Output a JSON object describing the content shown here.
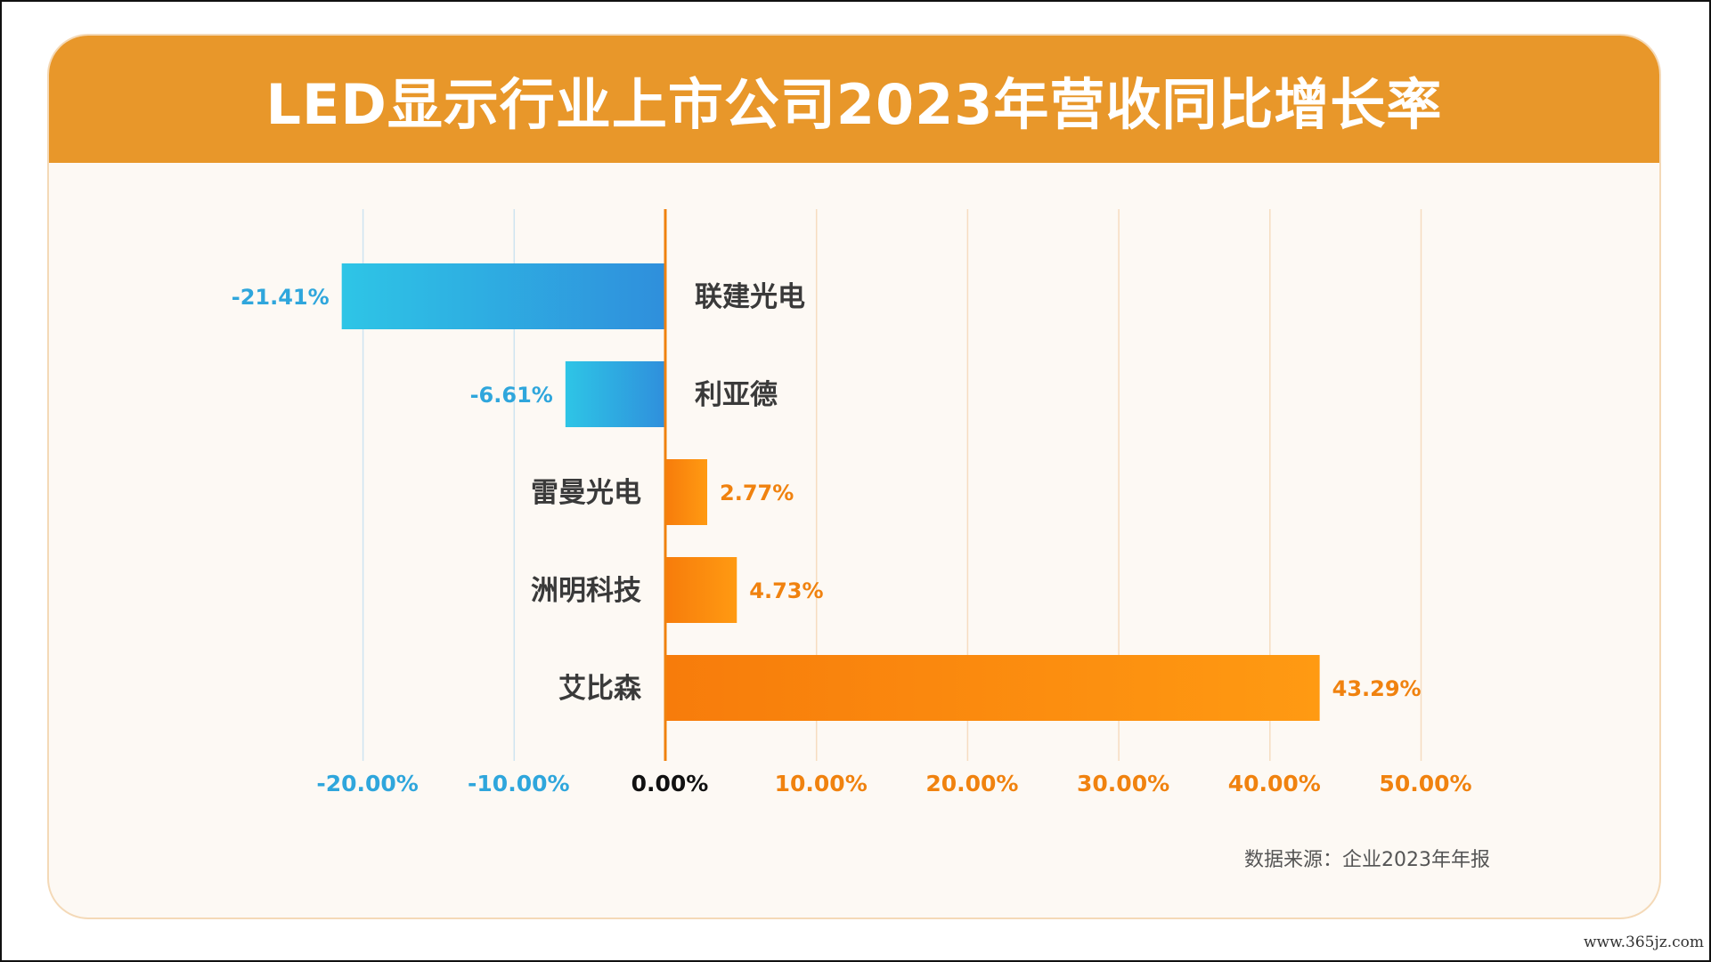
{
  "title": "LED显示行业上市公司2023年营收同比增长率",
  "source": "数据来源：企业2023年年报",
  "watermark": "www.365jz.com",
  "colors": {
    "header": "#e8972a",
    "negative": "#2fa6dc",
    "positive": "#f0820f",
    "axis": "#f0820f",
    "gridline": "#d7e8f2",
    "zero_tick": "#111111"
  },
  "chart_data": {
    "type": "bar",
    "orientation": "horizontal",
    "title": "LED显示行业上市公司2023年营收同比增长率",
    "categories": [
      "联建光电",
      "利亚德",
      "雷曼光电",
      "洲明科技",
      "艾比森"
    ],
    "values": [
      -21.41,
      -6.61,
      2.77,
      4.73,
      43.29
    ],
    "value_labels": [
      "-21.41%",
      "-6.61%",
      "2.77%",
      "4.73%",
      "43.29%"
    ],
    "unit": "%",
    "xlim": [
      -20,
      50
    ],
    "ticks": [
      -20,
      -10,
      0,
      10,
      20,
      30,
      40,
      50
    ],
    "tick_labels": [
      "-20.00%",
      "-10.00%",
      "0.00%",
      "10.00%",
      "20.00%",
      "30.00%",
      "40.00%",
      "50.00%"
    ],
    "grid": true,
    "legend": "none"
  }
}
